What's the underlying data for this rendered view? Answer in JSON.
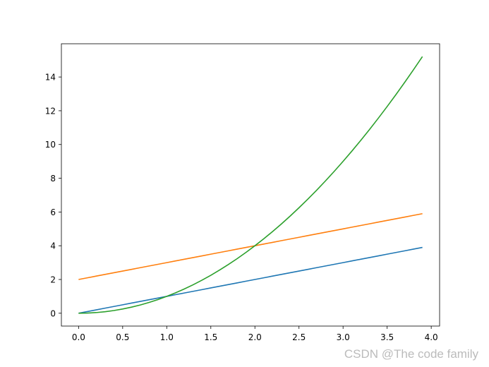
{
  "chart_data": {
    "type": "line",
    "x": [
      0,
      0.1,
      0.2,
      0.3,
      0.4,
      0.5,
      0.6,
      0.7,
      0.8,
      0.9,
      1,
      1.1,
      1.2,
      1.3,
      1.4,
      1.5,
      1.6,
      1.7,
      1.8,
      1.9,
      2,
      2.1,
      2.2,
      2.3,
      2.4,
      2.5,
      2.6,
      2.7,
      2.8,
      2.9,
      3,
      3.1,
      3.2,
      3.3,
      3.4,
      3.5,
      3.6,
      3.7,
      3.8,
      3.9
    ],
    "series": [
      {
        "color": "#1f77b4",
        "values": [
          0,
          0.1,
          0.2,
          0.3,
          0.4,
          0.5,
          0.6,
          0.7,
          0.8,
          0.9,
          1,
          1.1,
          1.2,
          1.3,
          1.4,
          1.5,
          1.6,
          1.7,
          1.8,
          1.9,
          2,
          2.1,
          2.2,
          2.3,
          2.4,
          2.5,
          2.6,
          2.7,
          2.8,
          2.9,
          3,
          3.1,
          3.2,
          3.3,
          3.4,
          3.5,
          3.6,
          3.7,
          3.8,
          3.9
        ]
      },
      {
        "color": "#ff7f0e",
        "values": [
          2,
          2.1,
          2.2,
          2.3,
          2.4,
          2.5,
          2.6,
          2.7,
          2.8,
          2.9,
          3,
          3.1,
          3.2,
          3.3,
          3.4,
          3.5,
          3.6,
          3.7,
          3.8,
          3.9,
          4,
          4.1,
          4.2,
          4.3,
          4.4,
          4.5,
          4.6,
          4.7,
          4.8,
          4.9,
          5,
          5.1,
          5.2,
          5.3,
          5.4,
          5.5,
          5.6,
          5.7,
          5.8,
          5.9
        ]
      },
      {
        "color": "#2ca02c",
        "values": [
          0,
          0.01,
          0.04,
          0.09,
          0.16,
          0.25,
          0.36,
          0.49,
          0.64,
          0.81,
          1,
          1.21,
          1.44,
          1.69,
          1.96,
          2.25,
          2.56,
          2.89,
          3.24,
          3.61,
          4,
          4.41,
          4.84,
          5.29,
          5.76,
          6.25,
          6.76,
          7.29,
          7.84,
          8.41,
          9,
          9.61,
          10.24,
          10.89,
          11.56,
          12.25,
          12.96,
          13.69,
          14.44,
          15.21
        ]
      }
    ],
    "xlim": [
      -0.195,
      4.095
    ],
    "ylim": [
      -0.7605,
      15.9705
    ],
    "xticks": [
      {
        "value": 0,
        "label": "0.0"
      },
      {
        "value": 0.5,
        "label": "0.5"
      },
      {
        "value": 1,
        "label": "1.0"
      },
      {
        "value": 1.5,
        "label": "1.5"
      },
      {
        "value": 2,
        "label": "2.0"
      },
      {
        "value": 2.5,
        "label": "2.5"
      },
      {
        "value": 3,
        "label": "3.0"
      },
      {
        "value": 3.5,
        "label": "3.5"
      },
      {
        "value": 4,
        "label": "4.0"
      }
    ],
    "yticks": [
      0,
      2,
      4,
      6,
      8,
      10,
      12,
      14
    ],
    "grid": false
  },
  "watermark": "CSDN @The code family"
}
